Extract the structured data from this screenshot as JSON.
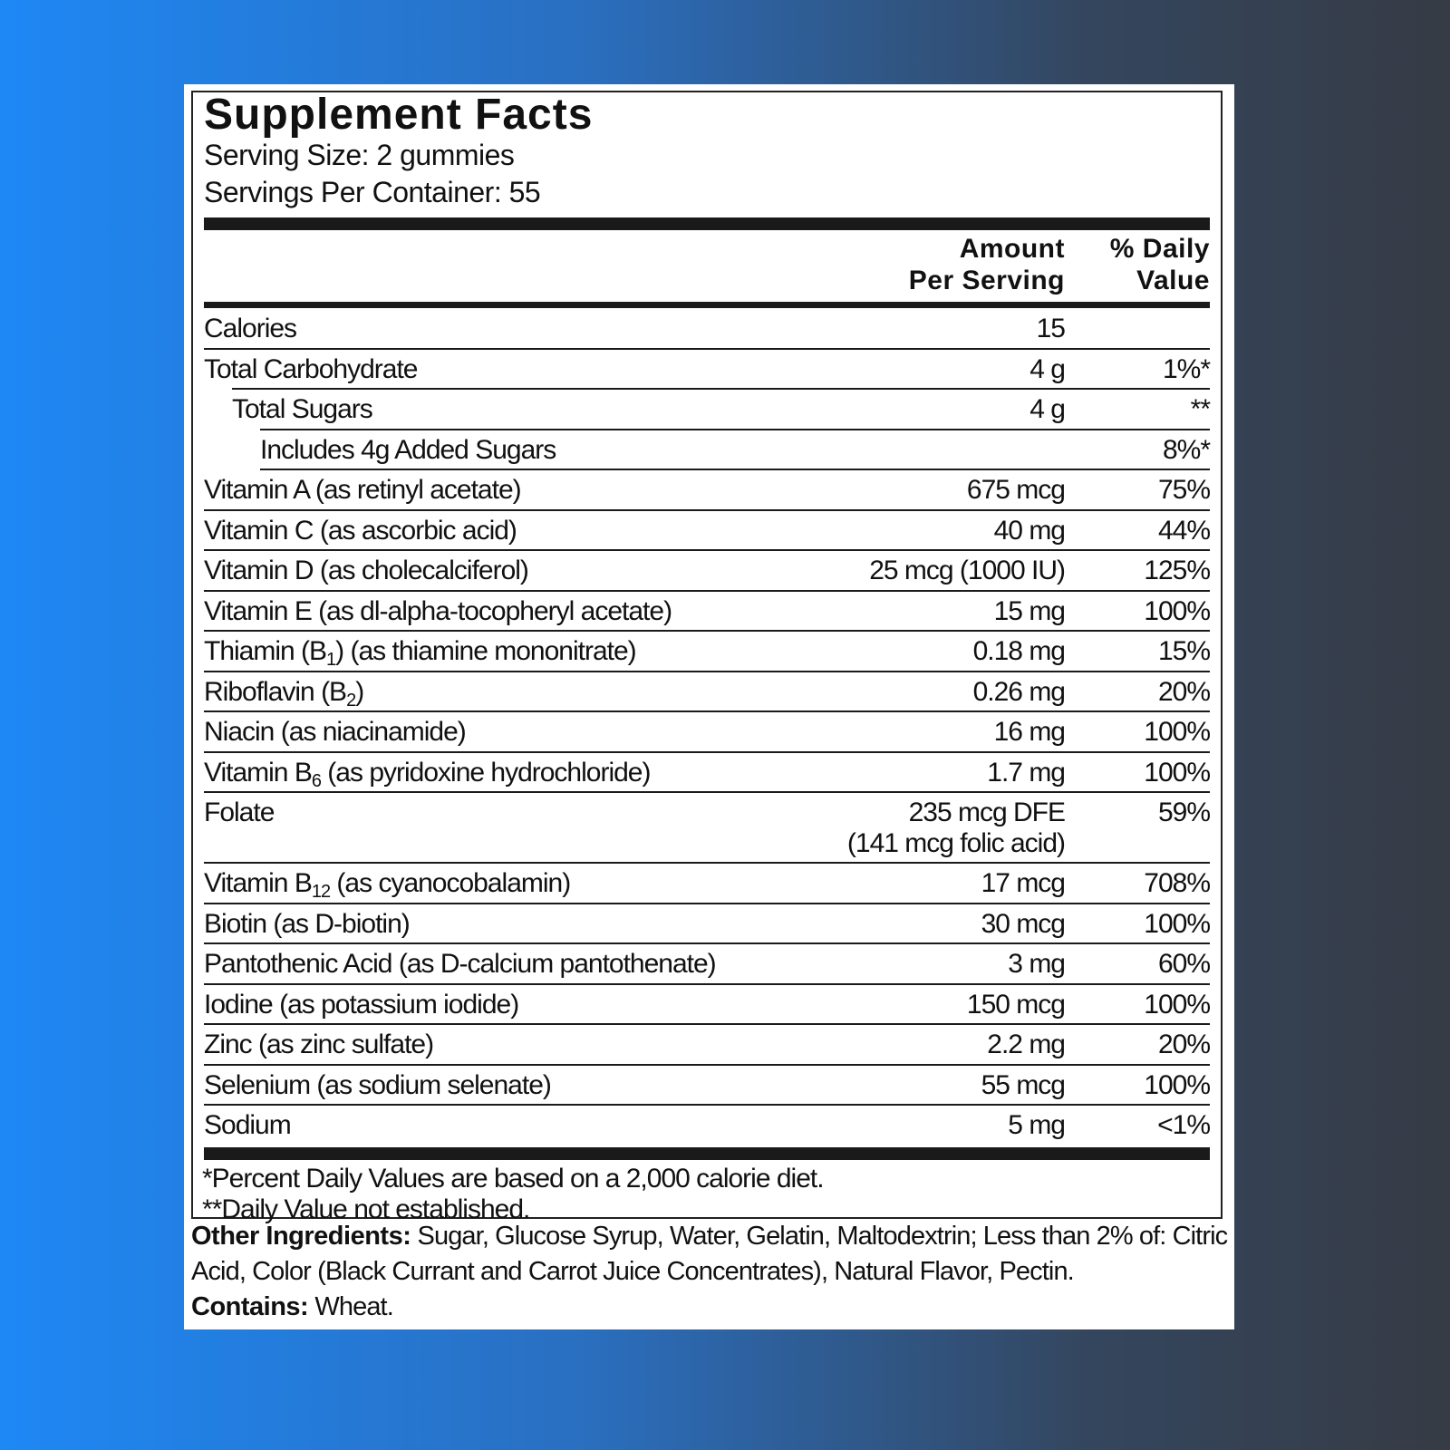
{
  "title": "Supplement Facts",
  "serving_size": "Serving Size: 2 gummies",
  "servings_per_container": "Servings Per Container: 55",
  "columns": {
    "amount": [
      "Amount",
      "Per Serving"
    ],
    "daily_value": [
      "% Daily",
      "Value"
    ]
  },
  "rows": [
    {
      "level": 0,
      "name": [
        {
          "text": "Calories"
        }
      ],
      "amount": [
        "15"
      ]
    },
    {
      "level": 0,
      "name": [
        {
          "text": "Total Carbohydrate"
        }
      ],
      "amount": [
        "4 g"
      ],
      "dv": "1%*"
    },
    {
      "level": 1,
      "name": [
        {
          "text": "Total Sugars"
        }
      ],
      "amount": [
        "4 g"
      ],
      "dv": "**"
    },
    {
      "level": 2,
      "name": [
        {
          "text": "Includes 4g Added Sugars"
        }
      ],
      "dv": "8%*"
    },
    {
      "level": 0,
      "name": [
        {
          "text": "Vitamin A (as retinyl acetate)"
        }
      ],
      "amount": [
        "675 mcg"
      ],
      "dv": "75%"
    },
    {
      "level": 0,
      "name": [
        {
          "text": "Vitamin C (as ascorbic acid)"
        }
      ],
      "amount": [
        "40 mg"
      ],
      "dv": "44%"
    },
    {
      "level": 0,
      "name": [
        {
          "text": "Vitamin D (as cholecalciferol)"
        }
      ],
      "amount": [
        "25 mcg (1000 IU)"
      ],
      "dv": "125%"
    },
    {
      "level": 0,
      "name": [
        {
          "text": "Vitamin E (as dl-alpha-tocopheryl acetate)"
        }
      ],
      "amount": [
        "15 mg"
      ],
      "dv": "100%"
    },
    {
      "level": 0,
      "name": [
        {
          "text": "Thiamin (B"
        },
        {
          "text": "1",
          "sub": true
        },
        {
          "text": ") (as thiamine mononitrate)"
        }
      ],
      "amount": [
        "0.18 mg"
      ],
      "dv": "15%"
    },
    {
      "level": 0,
      "name": [
        {
          "text": "Riboflavin (B"
        },
        {
          "text": "2",
          "sub": true
        },
        {
          "text": ")"
        }
      ],
      "amount": [
        "0.26 mg"
      ],
      "dv": "20%"
    },
    {
      "level": 0,
      "name": [
        {
          "text": "Niacin (as niacinamide)"
        }
      ],
      "amount": [
        "16 mg"
      ],
      "dv": "100%"
    },
    {
      "level": 0,
      "name": [
        {
          "text": "Vitamin B"
        },
        {
          "text": "6",
          "sub": true
        },
        {
          "text": " (as pyridoxine hydrochloride)"
        }
      ],
      "amount": [
        "1.7 mg"
      ],
      "dv": "100%"
    },
    {
      "level": 0,
      "name": [
        {
          "text": "Folate"
        }
      ],
      "amount": [
        "235 mcg DFE",
        "(141 mcg folic acid)"
      ],
      "dv": "59%"
    },
    {
      "level": 0,
      "name": [
        {
          "text": "Vitamin B"
        },
        {
          "text": "12",
          "sub": true
        },
        {
          "text": " (as cyanocobalamin)"
        }
      ],
      "amount": [
        "17 mcg"
      ],
      "dv": "708%"
    },
    {
      "level": 0,
      "name": [
        {
          "text": "Biotin (as D-biotin)"
        }
      ],
      "amount": [
        "30 mcg"
      ],
      "dv": "100%"
    },
    {
      "level": 0,
      "name": [
        {
          "text": "Pantothenic Acid (as D-calcium pantothenate)"
        }
      ],
      "amount": [
        "3 mg"
      ],
      "dv": "60%"
    },
    {
      "level": 0,
      "name": [
        {
          "text": "Iodine (as potassium iodide)"
        }
      ],
      "amount": [
        "150 mcg"
      ],
      "dv": "100%"
    },
    {
      "level": 0,
      "name": [
        {
          "text": "Zinc (as zinc sulfate)"
        }
      ],
      "amount": [
        "2.2 mg"
      ],
      "dv": "20%"
    },
    {
      "level": 0,
      "name": [
        {
          "text": "Selenium (as sodium selenate)"
        }
      ],
      "amount": [
        "55 mcg"
      ],
      "dv": "100%"
    },
    {
      "level": 0,
      "name": [
        {
          "text": "Sodium"
        }
      ],
      "amount": [
        "5 mg"
      ],
      "dv": "<1%"
    }
  ],
  "footnotes": [
    "*Percent Daily Values are based on a 2,000 calorie diet.",
    "**Daily Value not established."
  ],
  "ingredients": {
    "label": "Other Ingredients:",
    "text": "Sugar, Glucose Syrup, Water, Gelatin, Maltodextrin; Less than 2% of: Citric Acid, Color (Black Currant and Carrot Juice Concentrates), Natural Flavor, Pectin."
  },
  "contains": {
    "label": "Contains:",
    "text": "Wheat."
  }
}
